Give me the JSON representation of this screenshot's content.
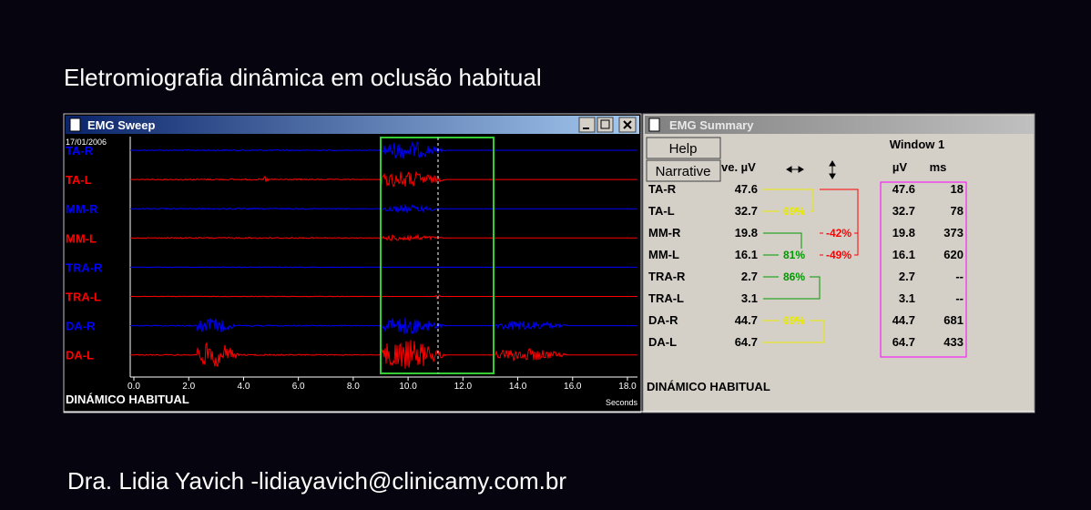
{
  "title": "Eletromiografia dinâmica em oclusão habitual",
  "sweep": {
    "window_title": "EMG Sweep",
    "date": "17/01/2006",
    "channels": [
      {
        "label": "TA-R",
        "color": "#0000ff"
      },
      {
        "label": "TA-L",
        "color": "#ff0000"
      },
      {
        "label": "MM-R",
        "color": "#0000ff"
      },
      {
        "label": "MM-L",
        "color": "#ff0000"
      },
      {
        "label": "TRA-R",
        "color": "#0000ff"
      },
      {
        "label": "TRA-L",
        "color": "#ff0000"
      },
      {
        "label": "DA-R",
        "color": "#0000ff"
      },
      {
        "label": "DA-L",
        "color": "#ff0000"
      }
    ],
    "xticks": [
      "0.0",
      "2.0",
      "4.0",
      "6.0",
      "8.0",
      "10.0",
      "12.0",
      "14.0",
      "16.0",
      "18.0"
    ],
    "x_unit": "Seconds",
    "footer": "DINÁMICO HABITUAL"
  },
  "summary": {
    "window_title": "EMG Summary",
    "buttons": [
      "Help",
      "Narrative"
    ],
    "avg_header": "ve. µV",
    "window_header": "Window 1",
    "uv_header": "µV",
    "ms_header": "ms",
    "rows": [
      {
        "name": "TA-R",
        "avg": "47.6",
        "win_uv": "47.6",
        "win_ms": "18"
      },
      {
        "name": "TA-L",
        "avg": "32.7",
        "win_uv": "32.7",
        "win_ms": "78"
      },
      {
        "name": "MM-R",
        "avg": "19.8",
        "win_uv": "19.8",
        "win_ms": "373"
      },
      {
        "name": "MM-L",
        "avg": "16.1",
        "win_uv": "16.1",
        "win_ms": "620"
      },
      {
        "name": "TRA-R",
        "avg": "2.7",
        "win_uv": "2.7",
        "win_ms": "--"
      },
      {
        "name": "TRA-L",
        "avg": "3.1",
        "win_uv": "3.1",
        "win_ms": "--"
      },
      {
        "name": "DA-R",
        "avg": "44.7",
        "win_uv": "44.7",
        "win_ms": "681"
      },
      {
        "name": "DA-L",
        "avg": "64.7",
        "win_uv": "64.7",
        "win_ms": "433"
      }
    ],
    "ratios": [
      {
        "label": "69%",
        "color": "#e8e800"
      },
      {
        "label": "81%",
        "color": "#009900"
      },
      {
        "label": "86%",
        "color": "#009900"
      },
      {
        "label": "69%",
        "color": "#e8e800"
      },
      {
        "label": "-42%",
        "color": "#ff0000"
      },
      {
        "label": "-49%",
        "color": "#ff0000"
      }
    ],
    "footer": "DINÁMICO HABITUAL"
  },
  "credit": "Dra. Lidia Yavich -lidiayavich@clinicamy.com.br"
}
